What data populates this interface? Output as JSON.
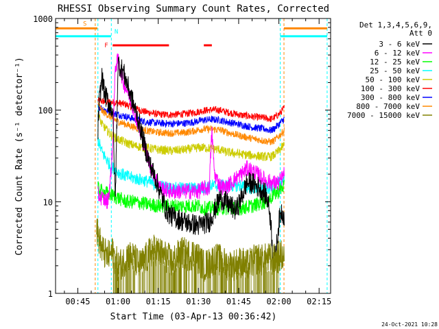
{
  "chart_data": {
    "type": "line",
    "title": "RHESSI Observing Summary Count Rates, Corrected",
    "xlabel": "Start Time (03-Apr-13 00:36:42)",
    "ylabel": "Corrected Count Rate (s⁻¹ detector⁻¹)",
    "y_scale": "log",
    "ylim": [
      1,
      1000
    ],
    "xlim": [
      "00:36:42",
      "02:18:00"
    ],
    "x_unit": "minutes since 00:00 UT",
    "x_ticks": [
      {
        "t": 45,
        "label": "00:45"
      },
      {
        "t": 60,
        "label": "01:00"
      },
      {
        "t": 75,
        "label": "01:15"
      },
      {
        "t": 90,
        "label": "01:30"
      },
      {
        "t": 105,
        "label": "01:45"
      },
      {
        "t": 120,
        "label": "02:00"
      },
      {
        "t": 135,
        "label": "02:15"
      }
    ],
    "y_ticks": [
      {
        "v": 1,
        "label": "1"
      },
      {
        "v": 10,
        "label": "10"
      },
      {
        "v": 100,
        "label": "100"
      },
      {
        "v": 1000,
        "label": "1000"
      }
    ],
    "legend": {
      "position": "right",
      "header": [
        "Det 1,3,4,5,6,9,",
        "Att 0"
      ],
      "entries": [
        {
          "label": "3 - 6 keV",
          "color": "#000000"
        },
        {
          "label": "6 - 12 keV",
          "color": "#ff00ff"
        },
        {
          "label": "12 - 25 keV",
          "color": "#00ff00"
        },
        {
          "label": "25 - 50 keV",
          "color": "#00ffff"
        },
        {
          "label": "50 - 100 keV",
          "color": "#cccc00"
        },
        {
          "label": "100 - 300 keV",
          "color": "#ff0000"
        },
        {
          "label": "300 - 800 keV",
          "color": "#0000ff"
        },
        {
          "label": "800 - 7000 keV",
          "color": "#ff8800"
        },
        {
          "label": "7000 - 15000 keV",
          "color": "#808000"
        }
      ]
    },
    "series": [
      {
        "name": "100 - 300 keV",
        "color": "#ff0000",
        "x": [
          52.5,
          54,
          57,
          60,
          63,
          66,
          70,
          75,
          80,
          85,
          88,
          90,
          92,
          95,
          98,
          100,
          103,
          106,
          110,
          115,
          117,
          118,
          120,
          122
        ],
        "y": [
          128,
          125,
          122,
          120,
          115,
          105,
          96,
          90,
          89,
          91,
          94,
          96,
          99,
          101,
          100,
          96,
          92,
          88,
          85,
          82,
          80,
          82,
          90,
          105
        ]
      },
      {
        "name": "300 - 800 keV",
        "color": "#0000ff",
        "x": [
          52.5,
          54,
          57,
          60,
          63,
          66,
          70,
          75,
          80,
          85,
          88,
          90,
          92,
          95,
          98,
          100,
          103,
          106,
          110,
          115,
          117,
          118,
          120,
          122
        ],
        "y": [
          110,
          105,
          95,
          90,
          85,
          80,
          75,
          72,
          71,
          72,
          74,
          76,
          78,
          79,
          78,
          75,
          72,
          69,
          65,
          62,
          60,
          62,
          70,
          80
        ]
      },
      {
        "name": "800 - 7000 keV",
        "color": "#ff8800",
        "x": [
          52.5,
          54,
          57,
          60,
          63,
          66,
          70,
          75,
          80,
          85,
          88,
          90,
          92,
          95,
          98,
          100,
          103,
          106,
          110,
          115,
          117,
          118,
          120,
          122
        ],
        "y": [
          118,
          98,
          85,
          75,
          70,
          65,
          60,
          57,
          56,
          57,
          59,
          61,
          62,
          62,
          61,
          58,
          55,
          52,
          49,
          46,
          45,
          46,
          52,
          60
        ]
      },
      {
        "name": "50 - 100 keV",
        "color": "#cccc00",
        "x": [
          52.5,
          54,
          57,
          60,
          63,
          66,
          70,
          75,
          80,
          85,
          88,
          90,
          92,
          95,
          98,
          100,
          103,
          106,
          110,
          115,
          117,
          118,
          120,
          122
        ],
        "y": [
          90,
          70,
          55,
          48,
          44,
          41,
          39,
          37,
          36,
          37,
          38,
          39,
          39,
          38,
          37,
          35,
          34,
          33,
          32,
          31,
          31,
          32,
          36,
          42
        ]
      },
      {
        "name": "25 - 50 keV",
        "color": "#00ffff",
        "x": [
          52.5,
          54,
          57,
          60,
          63,
          66,
          70,
          75,
          80,
          85,
          88,
          90,
          92,
          95,
          98,
          100,
          103,
          106,
          110,
          115,
          117,
          118,
          120,
          122
        ],
        "y": [
          48,
          35,
          25,
          21,
          19,
          18,
          17,
          15,
          14,
          14,
          14,
          14,
          14,
          15,
          15,
          15,
          15,
          15,
          14,
          14,
          14,
          15,
          16,
          18
        ]
      },
      {
        "name": "12 - 25 keV",
        "color": "#00ff00",
        "x": [
          52.5,
          54,
          57,
          60,
          63,
          66,
          70,
          75,
          80,
          85,
          88,
          90,
          92,
          95,
          98,
          100,
          103,
          106,
          110,
          115,
          117,
          118,
          120,
          122
        ],
        "y": [
          14,
          13,
          12,
          11,
          10,
          10,
          9.5,
          9,
          9,
          9,
          9,
          9,
          8.5,
          8.5,
          8.5,
          8.5,
          8.5,
          8.5,
          9,
          10,
          11,
          12,
          13,
          15
        ]
      },
      {
        "name": "6 - 12 keV",
        "color": "#ff00ff",
        "x": [
          52.5,
          54,
          56,
          57,
          58,
          59,
          60,
          61,
          62,
          64,
          66,
          68,
          70,
          72,
          74,
          76,
          80,
          85,
          90,
          92,
          94,
          95,
          96,
          98,
          100,
          102,
          104,
          106,
          108,
          110,
          113,
          115,
          118,
          120,
          122
        ],
        "y": [
          12,
          11,
          10,
          15,
          40,
          300,
          350,
          270,
          200,
          150,
          100,
          60,
          40,
          25,
          18,
          14,
          13,
          13,
          13,
          14,
          14,
          60,
          20,
          15,
          14,
          16,
          18,
          20,
          23,
          22,
          19,
          17,
          16,
          16,
          20
        ]
      },
      {
        "name": "3 - 6 keV",
        "color": "#000000",
        "x": [
          52.5,
          53,
          54,
          55,
          56,
          57,
          58,
          59,
          60,
          62,
          64,
          66,
          68,
          70,
          72,
          74,
          76,
          78,
          80,
          85,
          90,
          92,
          94,
          96,
          98,
          100,
          102,
          104,
          106,
          108,
          110,
          113,
          115,
          116,
          117,
          118,
          119,
          120,
          121,
          122
        ],
        "y": [
          60,
          120,
          230,
          150,
          130,
          110,
          100,
          10,
          330,
          260,
          170,
          110,
          70,
          40,
          25,
          18,
          12,
          8,
          7,
          6,
          5.5,
          5.8,
          6,
          8,
          11,
          10,
          9,
          8,
          11,
          16,
          16,
          14,
          12,
          10,
          6,
          2,
          3,
          6,
          8,
          7
        ]
      },
      {
        "name": "7000 - 15000 keV",
        "color": "#808000",
        "x": [
          52,
          54,
          56,
          58,
          60,
          62,
          64,
          66,
          68,
          70,
          72,
          74,
          76,
          78,
          80,
          82,
          84,
          86,
          88,
          90,
          92,
          94,
          96,
          98,
          100,
          102,
          104,
          106,
          108,
          110,
          112,
          114,
          116,
          118,
          120,
          122
        ],
        "y": [
          5,
          3,
          2.5,
          2.8,
          2,
          2.2,
          2.6,
          2.4,
          2,
          2.3,
          2.8,
          3,
          2.7,
          2.5,
          2.2,
          2.5,
          2.8,
          2.6,
          2.7,
          2.4,
          2,
          2.1,
          2.4,
          2.3,
          2.1,
          2.0,
          2.1,
          2.2,
          2.0,
          2.2,
          2.4,
          2.3,
          2.4,
          2.3,
          2.5,
          2.6
        ]
      }
    ],
    "markers": [
      {
        "label": "S",
        "color": "#ff8800",
        "t_start": 36.7,
        "t_end": 52.3,
        "value": 780
      },
      {
        "label": "N",
        "color": "#00ffff",
        "t_start": 36.7,
        "t_end": 57.4,
        "value": 640
      },
      {
        "label": "",
        "color": "#ff8800",
        "t_start": 121.9,
        "t_end": 138,
        "value": 780
      },
      {
        "label": "",
        "color": "#00ffff",
        "t_start": 120.5,
        "t_end": 138,
        "value": 640
      }
    ],
    "flare_intervals": {
      "label": "F",
      "color": "#ff0000",
      "value": 510,
      "intervals": [
        [
          58,
          79
        ],
        [
          92,
          95
        ]
      ]
    },
    "vertical_lines": [
      {
        "t": 51.5,
        "color": "#ff8800"
      },
      {
        "t": 52.5,
        "color": "#00ffff"
      },
      {
        "t": 57.5,
        "color": "#00ffff"
      },
      {
        "t": 120.5,
        "color": "#00ffff"
      },
      {
        "t": 121.9,
        "color": "#ff8800"
      },
      {
        "t": 138.0,
        "color": "#00ffff"
      }
    ],
    "footer": "24-Oct-2021 10:28"
  }
}
